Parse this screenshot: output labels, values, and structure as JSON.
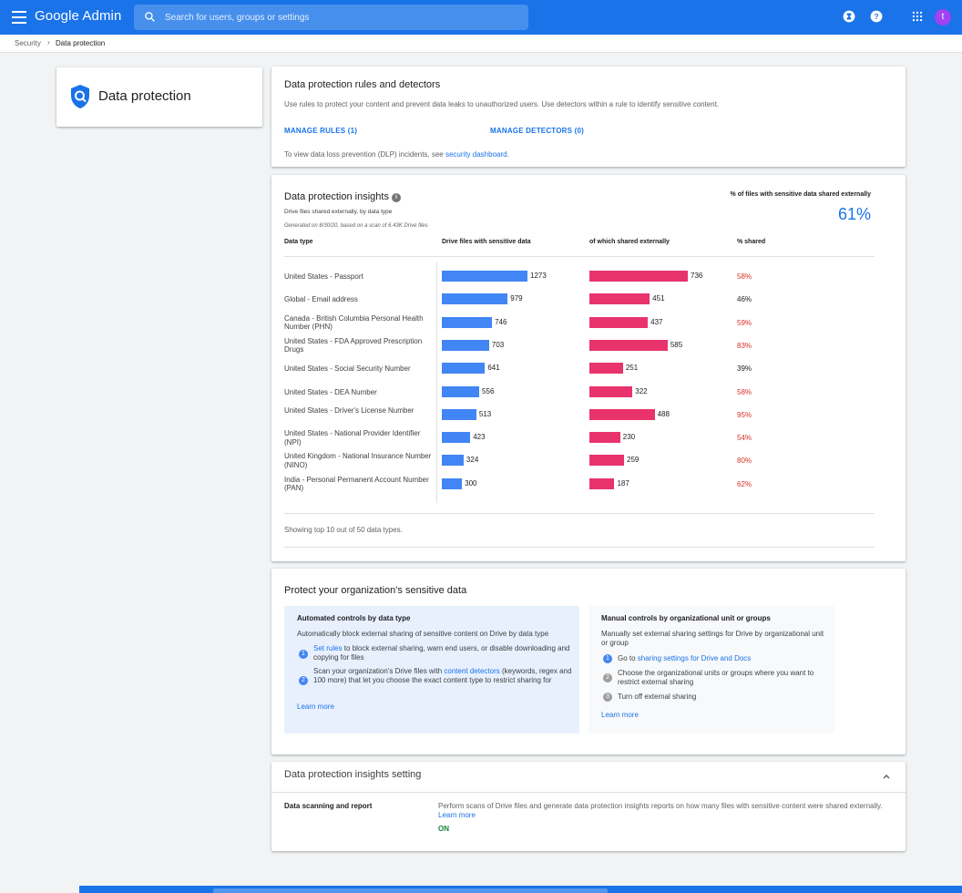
{
  "app": {
    "title": "Google Admin",
    "search_placeholder": "Search for users, groups or settings",
    "avatar_initial": "t"
  },
  "breadcrumb": {
    "parent": "Security",
    "separator": "›",
    "current": "Data protection"
  },
  "side_card": {
    "title": "Data protection"
  },
  "rules_card": {
    "title": "Data protection rules and detectors",
    "description": "Use rules to protect your content and prevent data leaks to unauthorized users. Use detectors within a rule to identify sensitive content.",
    "manage_rules": "MANAGE RULES (1)",
    "manage_detectors": "MANAGE DETECTORS (0)",
    "dlp_prefix": "To view data loss prevention (DLP) incidents, see ",
    "dlp_link": "security dashboard",
    "dlp_suffix": "."
  },
  "insights_card": {
    "title": "Data protection insights",
    "info_icon": "i",
    "subtitle": "Drive files shared externally, by data type",
    "generated": "Generated on 8/30/20, based on a scan of 6.43K Drive files",
    "pct_label": "% of files with sensitive data shared externally",
    "pct_value": "61%",
    "col_data_type": "Data type",
    "col_drive_files": "Drive files with sensitive data",
    "col_shared_ext": "of which shared externally",
    "col_pct": "% shared",
    "footer": "Showing top 10 out of 50 data types."
  },
  "chart_data": {
    "type": "bar",
    "categories": [
      "United States - Passport",
      "Global - Email address",
      "Canada - British Columbia Personal Health Number (PHN)",
      "United States - FDA Approved Prescription Drugs",
      "United States - Social Security Number",
      "United States - DEA Number",
      "United States - Driver's License Number",
      "United States - National Provider Identifier (NPI)",
      "United Kingdom - National Insurance Number (NINO)",
      "India - Personal Permanent Account Number (PAN)"
    ],
    "series": [
      {
        "name": "Drive files with sensitive data",
        "color": "#4285f4",
        "values": [
          1273,
          979,
          746,
          703,
          641,
          556,
          513,
          423,
          324,
          300
        ]
      },
      {
        "name": "of which shared externally",
        "color": "#e8336d",
        "values": [
          736,
          451,
          437,
          585,
          251,
          322,
          488,
          230,
          259,
          187
        ]
      }
    ],
    "percent_shared": [
      "58%",
      "46%",
      "59%",
      "83%",
      "39%",
      "58%",
      "95%",
      "54%",
      "80%",
      "62%"
    ],
    "percent_highlight": [
      true,
      false,
      true,
      true,
      false,
      true,
      true,
      true,
      true,
      true
    ]
  },
  "protect_card": {
    "title": "Protect your organization's sensitive data",
    "auto": {
      "heading": "Automated controls by data type",
      "description": "Automatically block external sharing of sensitive content on Drive by data type",
      "step1_num": "1",
      "step1_link": "Set rules",
      "step1_text": " to block external sharing, warn end users, or disable downloading and copying for files",
      "step2_num": "2",
      "step2_prefix": "Scan your organization's Drive files with ",
      "step2_link": "content detectors",
      "step2_text": " (keywords, regex and 100 more) that let you choose the exact content type to restrict sharing for",
      "learn_more": "Learn more"
    },
    "manual": {
      "heading": "Manual controls by organizational unit or groups",
      "description": "Manually set external sharing settings for Drive by organizational unit or group",
      "step1_num": "1",
      "step1_prefix": "Go to ",
      "step1_link": "sharing settings for Drive and Docs",
      "step2_num": "2",
      "step2_text": "Choose the organizational units or groups where you want to restrict external sharing",
      "step3_num": "3",
      "step3_text": "Turn off external sharing",
      "learn_more": "Learn more"
    }
  },
  "setting_card": {
    "title": "Data protection insights setting",
    "label": "Data scanning and report",
    "description": "Perform scans of Drive files and generate data protection insights reports on how many files with sensitive content were shared externally.",
    "learn_more": "Learn more",
    "status": "ON"
  },
  "colors": {
    "brand_blue": "#1a73e8",
    "bar_blue": "#4285f4",
    "bar_pink": "#e8336d",
    "alert_red": "#d93025",
    "on_green": "#188038"
  }
}
